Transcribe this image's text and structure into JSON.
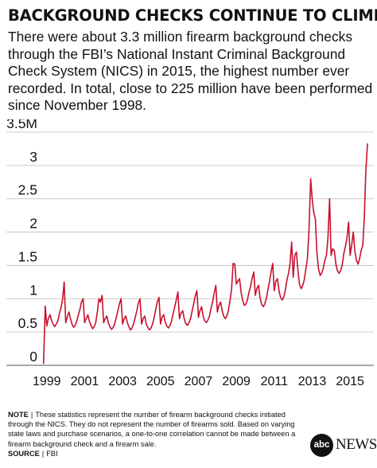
{
  "title": "BACKGROUND CHECKS CONTINUE TO CLIMB",
  "subtitle_lines": [
    "There were about 3.3 million firearm background checks",
    "through the FBI’s National Instant Criminal Background",
    "Check System (NICS) in 2015, the highest number ever",
    "recorded. In total, close to 225 million have been performed",
    "since November 1998."
  ],
  "chart_data": {
    "type": "line",
    "title": "",
    "xlabel": "",
    "ylabel": "",
    "ylim": [
      0,
      3.5
    ],
    "xlim": [
      1998.8,
      2016.0
    ],
    "y_ticks": [
      {
        "value": 0,
        "label": "0"
      },
      {
        "value": 0.5,
        "label": "0.5"
      },
      {
        "value": 1,
        "label": "1"
      },
      {
        "value": 1.5,
        "label": "1.5"
      },
      {
        "value": 2,
        "label": "2"
      },
      {
        "value": 2.5,
        "label": "2.5"
      },
      {
        "value": 3,
        "label": "3"
      },
      {
        "value": 3.5,
        "label": "3.5M"
      }
    ],
    "x_ticks": [
      {
        "value": 1999,
        "label": "1999"
      },
      {
        "value": 2001,
        "label": "2001"
      },
      {
        "value": 2003,
        "label": "2003"
      },
      {
        "value": 2005,
        "label": "2005"
      },
      {
        "value": 2007,
        "label": "2007"
      },
      {
        "value": 2009,
        "label": "2009"
      },
      {
        "value": 2011,
        "label": "2011"
      },
      {
        "value": 2013,
        "label": "2013"
      },
      {
        "value": 2015,
        "label": "2015"
      }
    ],
    "grid": "horizontal",
    "line_color": "#c8102e",
    "series": [
      {
        "values": [
          [
            1998.83,
            0.02
          ],
          [
            1998.92,
            0.89
          ],
          [
            1999.0,
            0.59
          ],
          [
            1999.08,
            0.7
          ],
          [
            1999.17,
            0.76
          ],
          [
            1999.25,
            0.68
          ],
          [
            1999.33,
            0.62
          ],
          [
            1999.42,
            0.58
          ],
          [
            1999.5,
            0.62
          ],
          [
            1999.58,
            0.66
          ],
          [
            1999.67,
            0.78
          ],
          [
            1999.75,
            0.86
          ],
          [
            1999.83,
            0.98
          ],
          [
            1999.92,
            1.25
          ],
          [
            2000.0,
            0.64
          ],
          [
            2000.08,
            0.72
          ],
          [
            2000.17,
            0.8
          ],
          [
            2000.25,
            0.7
          ],
          [
            2000.33,
            0.62
          ],
          [
            2000.42,
            0.57
          ],
          [
            2000.5,
            0.6
          ],
          [
            2000.58,
            0.66
          ],
          [
            2000.67,
            0.76
          ],
          [
            2000.75,
            0.84
          ],
          [
            2000.83,
            0.95
          ],
          [
            2000.92,
            1.0
          ],
          [
            2001.0,
            0.64
          ],
          [
            2001.08,
            0.7
          ],
          [
            2001.17,
            0.76
          ],
          [
            2001.25,
            0.66
          ],
          [
            2001.33,
            0.6
          ],
          [
            2001.42,
            0.55
          ],
          [
            2001.5,
            0.58
          ],
          [
            2001.58,
            0.64
          ],
          [
            2001.67,
            0.8
          ],
          [
            2001.75,
            1.0
          ],
          [
            2001.83,
            0.95
          ],
          [
            2001.92,
            1.05
          ],
          [
            2002.0,
            0.64
          ],
          [
            2002.08,
            0.7
          ],
          [
            2002.17,
            0.74
          ],
          [
            2002.25,
            0.64
          ],
          [
            2002.33,
            0.58
          ],
          [
            2002.42,
            0.54
          ],
          [
            2002.5,
            0.57
          ],
          [
            2002.58,
            0.62
          ],
          [
            2002.67,
            0.72
          ],
          [
            2002.75,
            0.82
          ],
          [
            2002.83,
            0.92
          ],
          [
            2002.92,
            1.0
          ],
          [
            2003.0,
            0.62
          ],
          [
            2003.08,
            0.7
          ],
          [
            2003.17,
            0.74
          ],
          [
            2003.25,
            0.64
          ],
          [
            2003.33,
            0.58
          ],
          [
            2003.42,
            0.53
          ],
          [
            2003.5,
            0.56
          ],
          [
            2003.58,
            0.62
          ],
          [
            2003.67,
            0.72
          ],
          [
            2003.75,
            0.82
          ],
          [
            2003.83,
            0.93
          ],
          [
            2003.92,
            1.0
          ],
          [
            2004.0,
            0.62
          ],
          [
            2004.08,
            0.7
          ],
          [
            2004.17,
            0.74
          ],
          [
            2004.25,
            0.62
          ],
          [
            2004.33,
            0.57
          ],
          [
            2004.42,
            0.53
          ],
          [
            2004.5,
            0.56
          ],
          [
            2004.58,
            0.62
          ],
          [
            2004.67,
            0.72
          ],
          [
            2004.75,
            0.84
          ],
          [
            2004.83,
            0.95
          ],
          [
            2004.92,
            1.02
          ],
          [
            2005.0,
            0.62
          ],
          [
            2005.08,
            0.72
          ],
          [
            2005.17,
            0.76
          ],
          [
            2005.25,
            0.65
          ],
          [
            2005.33,
            0.59
          ],
          [
            2005.42,
            0.56
          ],
          [
            2005.5,
            0.6
          ],
          [
            2005.58,
            0.66
          ],
          [
            2005.67,
            0.78
          ],
          [
            2005.75,
            0.88
          ],
          [
            2005.83,
            0.98
          ],
          [
            2005.92,
            1.1
          ],
          [
            2006.0,
            0.7
          ],
          [
            2006.08,
            0.78
          ],
          [
            2006.17,
            0.82
          ],
          [
            2006.25,
            0.7
          ],
          [
            2006.33,
            0.63
          ],
          [
            2006.42,
            0.6
          ],
          [
            2006.5,
            0.64
          ],
          [
            2006.58,
            0.7
          ],
          [
            2006.67,
            0.82
          ],
          [
            2006.75,
            0.92
          ],
          [
            2006.83,
            1.04
          ],
          [
            2006.92,
            1.12
          ],
          [
            2007.0,
            0.72
          ],
          [
            2007.08,
            0.82
          ],
          [
            2007.17,
            0.88
          ],
          [
            2007.25,
            0.74
          ],
          [
            2007.33,
            0.67
          ],
          [
            2007.42,
            0.64
          ],
          [
            2007.5,
            0.68
          ],
          [
            2007.58,
            0.74
          ],
          [
            2007.67,
            0.86
          ],
          [
            2007.75,
            0.95
          ],
          [
            2007.83,
            1.08
          ],
          [
            2007.92,
            1.2
          ],
          [
            2008.0,
            0.8
          ],
          [
            2008.08,
            0.9
          ],
          [
            2008.17,
            0.95
          ],
          [
            2008.25,
            0.82
          ],
          [
            2008.33,
            0.74
          ],
          [
            2008.42,
            0.7
          ],
          [
            2008.5,
            0.74
          ],
          [
            2008.58,
            0.82
          ],
          [
            2008.67,
            0.98
          ],
          [
            2008.75,
            1.15
          ],
          [
            2008.83,
            1.53
          ],
          [
            2008.92,
            1.52
          ],
          [
            2009.0,
            1.22
          ],
          [
            2009.08,
            1.26
          ],
          [
            2009.17,
            1.3
          ],
          [
            2009.25,
            1.1
          ],
          [
            2009.33,
            0.98
          ],
          [
            2009.42,
            0.9
          ],
          [
            2009.5,
            0.92
          ],
          [
            2009.58,
            0.98
          ],
          [
            2009.67,
            1.1
          ],
          [
            2009.75,
            1.18
          ],
          [
            2009.83,
            1.3
          ],
          [
            2009.92,
            1.4
          ],
          [
            2010.0,
            1.05
          ],
          [
            2010.08,
            1.15
          ],
          [
            2010.17,
            1.2
          ],
          [
            2010.25,
            1.02
          ],
          [
            2010.33,
            0.92
          ],
          [
            2010.42,
            0.88
          ],
          [
            2010.5,
            0.92
          ],
          [
            2010.58,
            1.0
          ],
          [
            2010.67,
            1.14
          ],
          [
            2010.75,
            1.26
          ],
          [
            2010.83,
            1.4
          ],
          [
            2010.92,
            1.53
          ],
          [
            2011.0,
            1.12
          ],
          [
            2011.08,
            1.26
          ],
          [
            2011.17,
            1.3
          ],
          [
            2011.25,
            1.12
          ],
          [
            2011.33,
            1.02
          ],
          [
            2011.42,
            0.98
          ],
          [
            2011.5,
            1.02
          ],
          [
            2011.58,
            1.12
          ],
          [
            2011.67,
            1.28
          ],
          [
            2011.75,
            1.38
          ],
          [
            2011.83,
            1.52
          ],
          [
            2011.92,
            1.85
          ],
          [
            2012.0,
            1.32
          ],
          [
            2012.08,
            1.65
          ],
          [
            2012.17,
            1.7
          ],
          [
            2012.25,
            1.42
          ],
          [
            2012.33,
            1.22
          ],
          [
            2012.42,
            1.15
          ],
          [
            2012.5,
            1.2
          ],
          [
            2012.58,
            1.28
          ],
          [
            2012.67,
            1.45
          ],
          [
            2012.75,
            1.6
          ],
          [
            2012.83,
            2.0
          ],
          [
            2012.92,
            2.8
          ],
          [
            2013.0,
            2.5
          ],
          [
            2013.08,
            2.3
          ],
          [
            2013.17,
            2.2
          ],
          [
            2013.25,
            1.7
          ],
          [
            2013.33,
            1.45
          ],
          [
            2013.42,
            1.35
          ],
          [
            2013.5,
            1.38
          ],
          [
            2013.58,
            1.45
          ],
          [
            2013.67,
            1.58
          ],
          [
            2013.75,
            1.65
          ],
          [
            2013.83,
            1.9
          ],
          [
            2013.92,
            2.5
          ],
          [
            2014.0,
            1.65
          ],
          [
            2014.08,
            1.75
          ],
          [
            2014.17,
            1.72
          ],
          [
            2014.25,
            1.52
          ],
          [
            2014.33,
            1.42
          ],
          [
            2014.42,
            1.38
          ],
          [
            2014.5,
            1.42
          ],
          [
            2014.58,
            1.5
          ],
          [
            2014.67,
            1.68
          ],
          [
            2014.75,
            1.78
          ],
          [
            2014.83,
            1.9
          ],
          [
            2014.92,
            2.15
          ],
          [
            2015.0,
            1.65
          ],
          [
            2015.08,
            1.8
          ],
          [
            2015.17,
            2.0
          ],
          [
            2015.25,
            1.72
          ],
          [
            2015.33,
            1.58
          ],
          [
            2015.42,
            1.52
          ],
          [
            2015.5,
            1.6
          ],
          [
            2015.58,
            1.72
          ],
          [
            2015.67,
            1.8
          ],
          [
            2015.75,
            2.2
          ],
          [
            2015.83,
            2.9
          ],
          [
            2015.92,
            3.33
          ]
        ]
      }
    ]
  },
  "footer": {
    "note_label": "NOTE",
    "separator": "|",
    "note_text": "These statistics represent the number of firearm background checks initiated through the NICS. They do not represent the number of firearms sold. Based on varying state laws and purchase scenarios, a one-to-one correlation cannot be made between a firearm background check and a firearm sale.",
    "source_label": "SOURCE",
    "source_text": "FBI"
  },
  "logo": {
    "circle_text": "abc",
    "word_text": "NEWS"
  }
}
